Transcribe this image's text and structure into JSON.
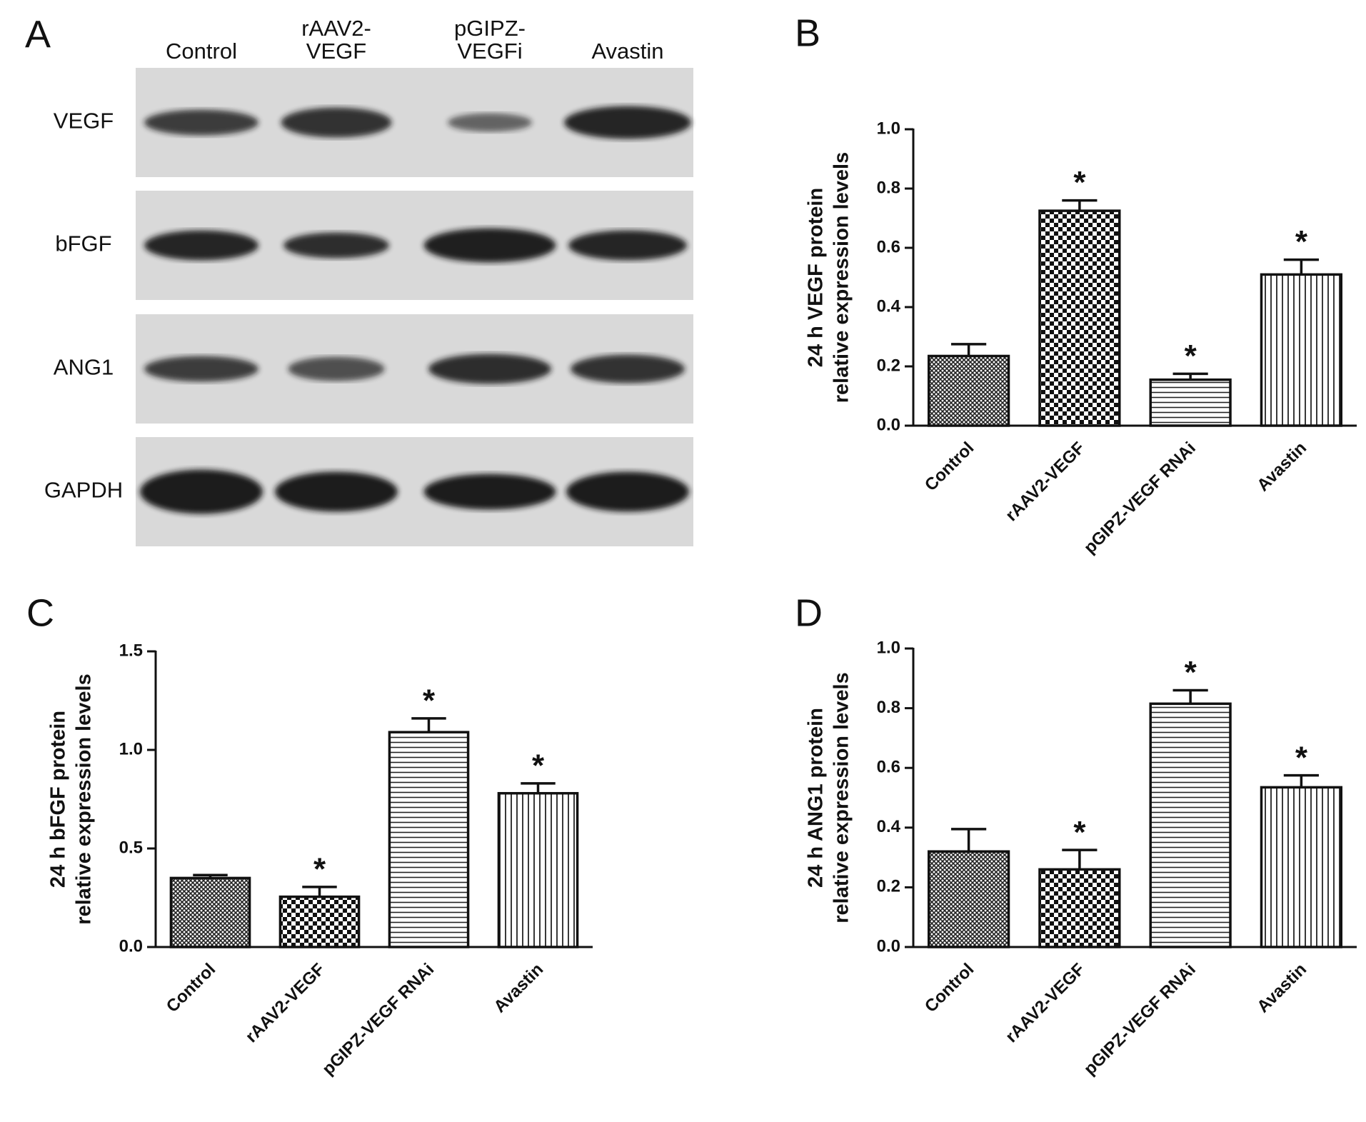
{
  "blot": {
    "panel_label": "A",
    "lanes": [
      [
        "Control"
      ],
      [
        "rAAV2-",
        "VEGF"
      ],
      [
        "pGIPZ-",
        "VEGFi"
      ],
      [
        "Avastin"
      ]
    ],
    "rows": [
      "VEGF",
      "bFGF",
      "ANG1",
      "GAPDH"
    ]
  },
  "chart_data": [
    {
      "type": "bar",
      "panel_label": "B",
      "ylabel": [
        "24 h VEGF protein",
        "relative expression levels"
      ],
      "categories": [
        "Control",
        "rAAV2-VEGF",
        "pGIPZ-VEGF RNAi",
        "Avastin"
      ],
      "values": [
        0.235,
        0.725,
        0.155,
        0.51
      ],
      "errors": [
        0.04,
        0.035,
        0.02,
        0.05
      ],
      "significance": [
        null,
        "*",
        "*",
        "*"
      ],
      "patterns": [
        "crosshatch",
        "checker",
        "hlines",
        "vlines"
      ],
      "ylim": [
        0,
        1.0
      ],
      "yticks": [
        {
          "value": 0,
          "label": "0.0"
        },
        0.2,
        0.4,
        0.6,
        0.8,
        {
          "value": 1,
          "label": "1.0"
        }
      ]
    },
    {
      "type": "bar",
      "panel_label": "C",
      "ylabel": [
        "24 h bFGF protein",
        "relative expression levels"
      ],
      "categories": [
        "Control",
        "rAAV2-VEGF",
        "pGIPZ-VEGF RNAi",
        "Avastin"
      ],
      "values": [
        0.35,
        0.255,
        1.09,
        0.78
      ],
      "errors": [
        0.015,
        0.05,
        0.07,
        0.05
      ],
      "significance": [
        null,
        "*",
        "*",
        "*"
      ],
      "patterns": [
        "crosshatch",
        "checker",
        "hlines",
        "vlines"
      ],
      "ylim": [
        0,
        1.5
      ],
      "yticks": [
        {
          "value": 0,
          "label": "0.0"
        },
        0.5,
        {
          "value": 1,
          "label": "1.0"
        },
        1.5
      ]
    },
    {
      "type": "bar",
      "panel_label": "D",
      "ylabel": [
        "24 h ANG1 protein",
        "relative expression levels"
      ],
      "categories": [
        "Control",
        "rAAV2-VEGF",
        "pGIPZ-VEGF RNAi",
        "Avastin"
      ],
      "values": [
        0.32,
        0.26,
        0.815,
        0.535
      ],
      "errors": [
        0.075,
        0.065,
        0.045,
        0.04
      ],
      "significance": [
        null,
        "*",
        "*",
        "*"
      ],
      "patterns": [
        "crosshatch",
        "checker",
        "hlines",
        "vlines"
      ],
      "ylim": [
        0,
        1.0
      ],
      "yticks": [
        {
          "value": 0,
          "label": "0.0"
        },
        0.2,
        0.4,
        0.6,
        0.8,
        {
          "value": 1,
          "label": "1.0"
        }
      ]
    }
  ]
}
